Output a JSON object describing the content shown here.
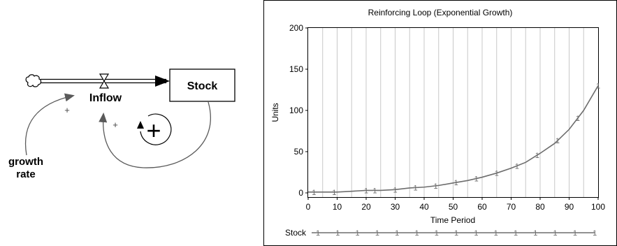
{
  "diagram": {
    "stock_label": "Stock",
    "inflow_label": "Inflow",
    "aux_label_line1": "growth",
    "aux_label_line2": "rate",
    "polarity_aux_to_flow": "+",
    "polarity_stock_to_flow": "+",
    "loop_symbol": "+",
    "icons": [
      "cloud-source-icon",
      "valve-icon",
      "loop-reinforcing-icon"
    ]
  },
  "chart_data": {
    "type": "line",
    "title": "Reinforcing Loop (Exponential Growth)",
    "xlabel": "Time Period",
    "ylabel": "Units",
    "xlim": [
      0,
      100
    ],
    "ylim": [
      0,
      200
    ],
    "xticks": [
      0,
      10,
      20,
      30,
      40,
      50,
      60,
      70,
      80,
      90,
      100
    ],
    "yticks": [
      0,
      50,
      100,
      150,
      200
    ],
    "grid": "vertical",
    "legend": "bottom",
    "series": [
      {
        "name": "Stock",
        "marker": "1",
        "color": "#6d6d6d",
        "x": [
          0,
          5,
          10,
          15,
          20,
          25,
          30,
          35,
          40,
          45,
          50,
          55,
          60,
          65,
          70,
          75,
          80,
          85,
          90,
          95,
          100
        ],
        "y": [
          1,
          1,
          1,
          2,
          3,
          3,
          4,
          6,
          7,
          9,
          12,
          15,
          19,
          24,
          30,
          37,
          48,
          60,
          77,
          100,
          130
        ]
      }
    ],
    "marker_x": [
      2,
      9,
      20,
      23,
      30,
      37,
      44,
      51,
      58,
      65,
      72,
      79,
      86,
      93,
      100
    ]
  }
}
